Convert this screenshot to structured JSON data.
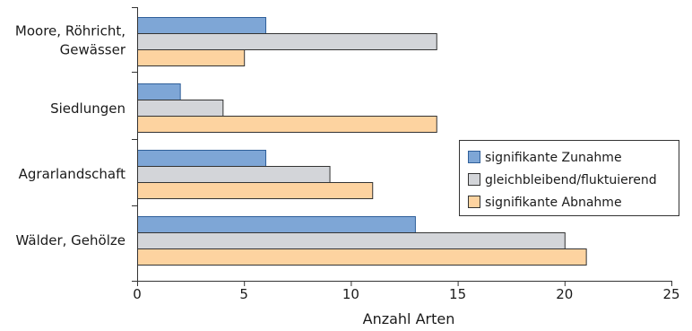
{
  "chart_data": {
    "type": "bar",
    "orientation": "horizontal",
    "categories": [
      "Moore, Röhricht,\nGewässer",
      "Siedlungen",
      "Agrarlandschaft",
      "Wälder, Gehölze"
    ],
    "series": [
      {
        "name": "signifikante Zunahme",
        "values": [
          6,
          2,
          6,
          13
        ],
        "color": "#7ea6d6",
        "stroke": "#2f5f9a"
      },
      {
        "name": "gleichbleibend/fluktuierend",
        "values": [
          14,
          4,
          9,
          20
        ],
        "color": "#d3d5d9",
        "stroke": "#333333"
      },
      {
        "name": "signifikante Abnahme",
        "values": [
          5,
          14,
          11,
          21
        ],
        "color": "#fdd3a0",
        "stroke": "#333333"
      }
    ],
    "xlabel": "Anzahl Arten",
    "ylabel": "",
    "xlim": [
      0,
      25
    ],
    "xticks": [
      0,
      5,
      10,
      15,
      20,
      25
    ],
    "grid": false,
    "legend_position": "right"
  }
}
